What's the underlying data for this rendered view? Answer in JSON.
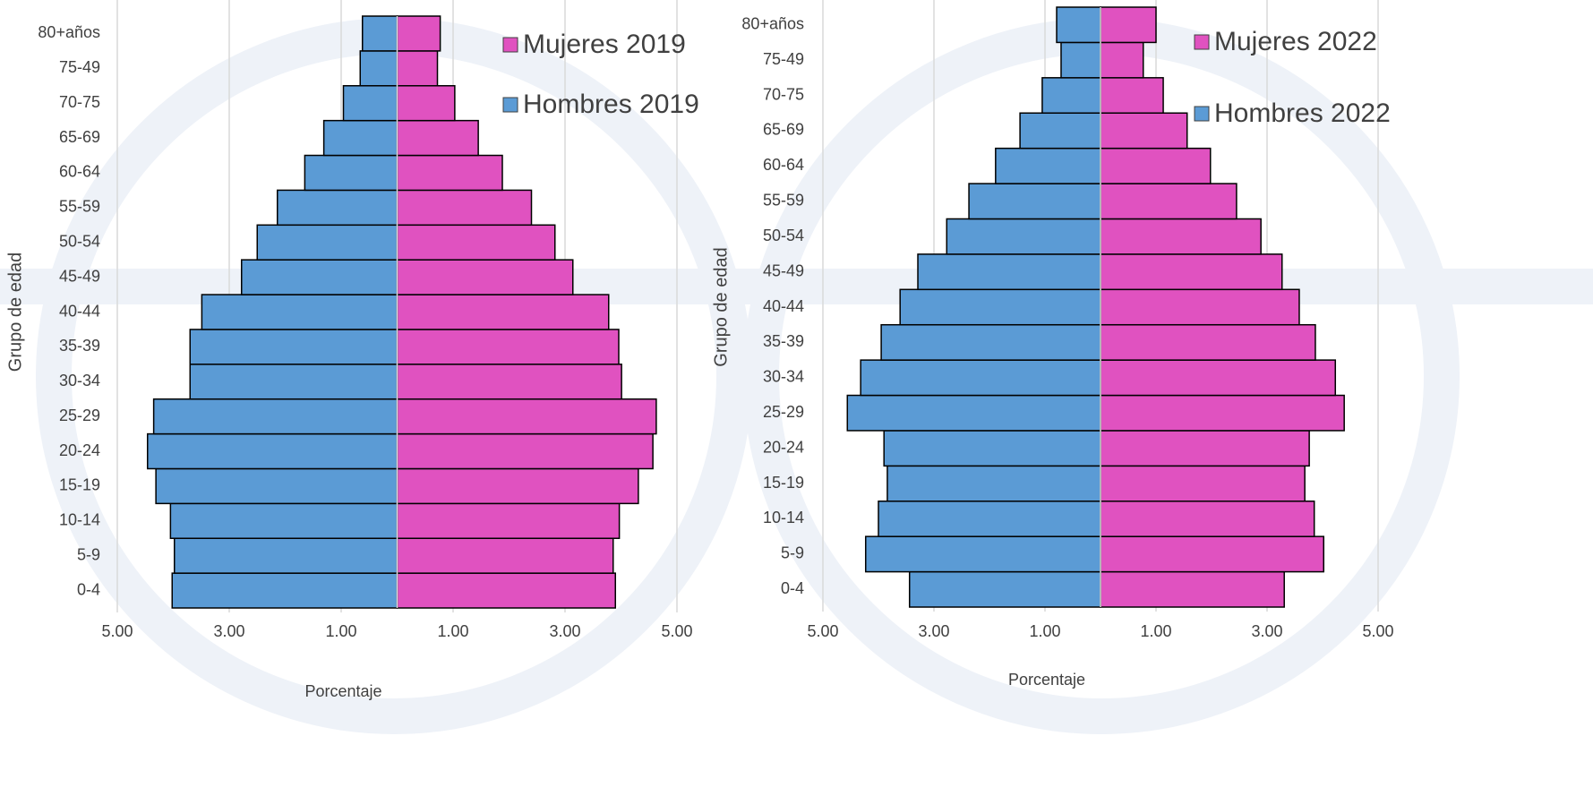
{
  "chart_data": [
    {
      "type": "bar",
      "orientation": "horizontal",
      "categories": [
        "0-4",
        "5-9",
        "10-14",
        "15-19",
        "20-24",
        "25-29",
        "30-34",
        "35-39",
        "40-44",
        "45-49",
        "50-54",
        "55-59",
        "60-64",
        "65-69",
        "70-75",
        "75-49",
        "80+años"
      ],
      "series": [
        {
          "name": "Mujeres 2019",
          "color": "#e052c0",
          "values": [
            3.9,
            3.86,
            3.97,
            4.31,
            4.57,
            4.63,
            4.01,
            3.96,
            3.78,
            3.14,
            2.82,
            2.4,
            1.88,
            1.45,
            1.03,
            0.72,
            0.77
          ]
        },
        {
          "name": "Hombres 2019",
          "color": "#5b9bd5",
          "values": [
            -4.02,
            -3.98,
            -4.05,
            -4.31,
            -4.46,
            -4.35,
            -3.7,
            -3.7,
            -3.49,
            -2.78,
            -2.5,
            -2.14,
            -1.65,
            -1.31,
            -0.96,
            -0.66,
            -0.62
          ]
        }
      ],
      "xlabel": "Porcentaje",
      "ylabel": "Grupo de edad",
      "xlim": [
        -5,
        5
      ],
      "xticks": [
        {
          "value": -5,
          "label": "5.00"
        },
        {
          "value": -3,
          "label": "3.00"
        },
        {
          "value": -1,
          "label": "1.00"
        },
        {
          "value": 1,
          "label": "1.00"
        },
        {
          "value": 3,
          "label": "3.00"
        },
        {
          "value": 5,
          "label": "5.00"
        }
      ],
      "grid": true,
      "legend": "upper right"
    },
    {
      "type": "bar",
      "orientation": "horizontal",
      "categories": [
        "0-4",
        "5-9",
        "10-14",
        "15-19",
        "20-24",
        "25-29",
        "30-34",
        "35-39",
        "40-44",
        "45-49",
        "50-54",
        "55-59",
        "60-64",
        "65-69",
        "70-75",
        "75-49",
        "80+años"
      ],
      "series": [
        {
          "name": "Mujeres 2022",
          "color": "#e052c0",
          "values": [
            3.31,
            4.02,
            3.85,
            3.68,
            3.76,
            4.39,
            4.23,
            3.87,
            3.58,
            3.27,
            2.89,
            2.45,
            1.98,
            1.56,
            1.13,
            0.77,
            1.0
          ]
        },
        {
          "name": "Hombres 2022",
          "color": "#5b9bd5",
          "values": [
            -3.44,
            -4.23,
            -4.0,
            -3.84,
            -3.9,
            -4.56,
            -4.32,
            -3.95,
            -3.61,
            -3.29,
            -2.77,
            -2.37,
            -1.89,
            -1.45,
            -1.05,
            -0.71,
            -0.79
          ]
        }
      ],
      "xlabel": "Porcentaje",
      "ylabel": "Grupo de edad",
      "xlim": [
        -5,
        5
      ],
      "xticks": [
        {
          "value": -5,
          "label": "5.00"
        },
        {
          "value": -3,
          "label": "3.00"
        },
        {
          "value": -1,
          "label": "1.00"
        },
        {
          "value": 1,
          "label": "1.00"
        },
        {
          "value": 3,
          "label": "3.00"
        },
        {
          "value": 5,
          "label": "5.00"
        }
      ],
      "grid": true,
      "legend": "upper right"
    }
  ]
}
